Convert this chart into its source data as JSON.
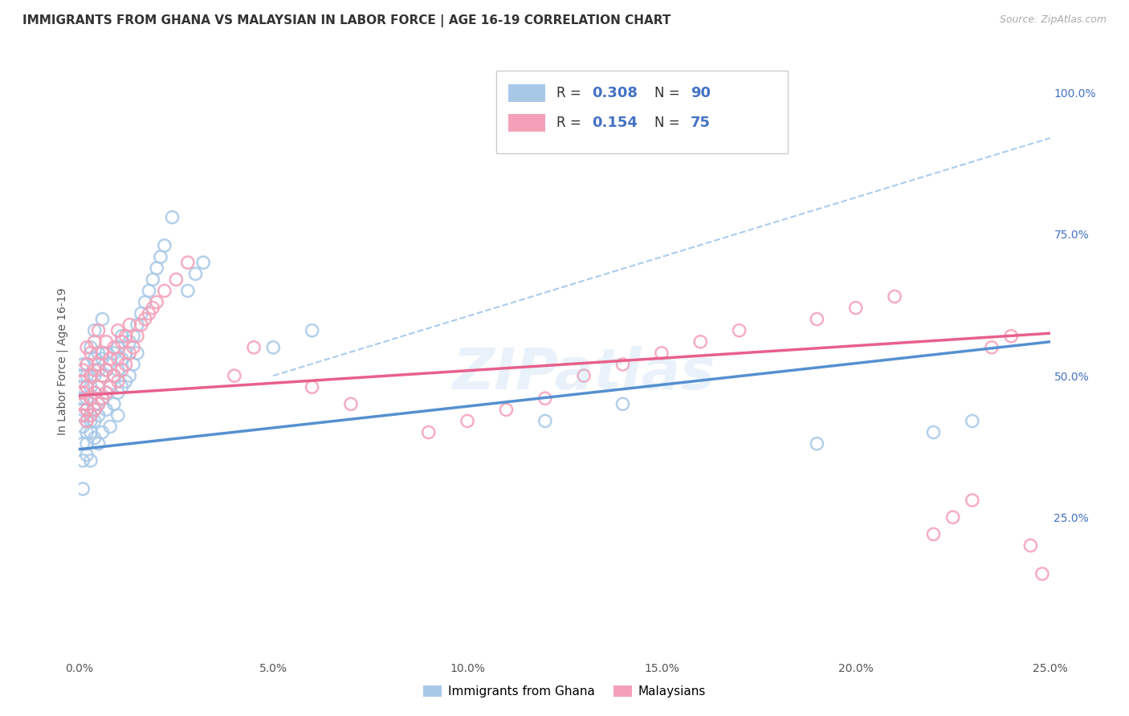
{
  "title": "IMMIGRANTS FROM GHANA VS MALAYSIAN IN LABOR FORCE | AGE 16-19 CORRELATION CHART",
  "source": "Source: ZipAtlas.com",
  "ylabel": "In Labor Force | Age 16-19",
  "xlim": [
    0.0,
    0.25
  ],
  "ylim": [
    0.0,
    1.05
  ],
  "xtick_labels": [
    "0.0%",
    "5.0%",
    "10.0%",
    "15.0%",
    "20.0%",
    "25.0%"
  ],
  "xtick_vals": [
    0.0,
    0.05,
    0.1,
    0.15,
    0.2,
    0.25
  ],
  "ytick_labels_right": [
    "25.0%",
    "50.0%",
    "75.0%",
    "100.0%"
  ],
  "ytick_vals_right": [
    0.25,
    0.5,
    0.75,
    1.0
  ],
  "ghana_color": "#a8c8e8",
  "malaysia_color": "#f4a0b8",
  "ghana_R": 0.308,
  "ghana_N": 90,
  "malaysia_R": 0.154,
  "malaysia_N": 75,
  "ghana_scatter_x": [
    0.001,
    0.001,
    0.001,
    0.001,
    0.001,
    0.001,
    0.001,
    0.001,
    0.001,
    0.001,
    0.002,
    0.002,
    0.002,
    0.002,
    0.002,
    0.002,
    0.002,
    0.002,
    0.002,
    0.003,
    0.003,
    0.003,
    0.003,
    0.003,
    0.003,
    0.003,
    0.003,
    0.004,
    0.004,
    0.004,
    0.004,
    0.004,
    0.004,
    0.004,
    0.005,
    0.005,
    0.005,
    0.005,
    0.005,
    0.005,
    0.006,
    0.006,
    0.006,
    0.006,
    0.006,
    0.007,
    0.007,
    0.007,
    0.007,
    0.008,
    0.008,
    0.008,
    0.009,
    0.009,
    0.009,
    0.01,
    0.01,
    0.01,
    0.01,
    0.011,
    0.011,
    0.011,
    0.012,
    0.012,
    0.013,
    0.013,
    0.014,
    0.014,
    0.015,
    0.015,
    0.016,
    0.017,
    0.018,
    0.019,
    0.02,
    0.021,
    0.022,
    0.024,
    0.028,
    0.03,
    0.032,
    0.05,
    0.06,
    0.12,
    0.14,
    0.19,
    0.22,
    0.23
  ],
  "ghana_scatter_y": [
    0.43,
    0.44,
    0.46,
    0.48,
    0.5,
    0.38,
    0.41,
    0.52,
    0.35,
    0.3,
    0.42,
    0.44,
    0.46,
    0.48,
    0.5,
    0.38,
    0.4,
    0.52,
    0.36,
    0.43,
    0.46,
    0.48,
    0.5,
    0.55,
    0.4,
    0.42,
    0.35,
    0.44,
    0.47,
    0.5,
    0.53,
    0.42,
    0.39,
    0.58,
    0.45,
    0.48,
    0.51,
    0.54,
    0.43,
    0.38,
    0.46,
    0.5,
    0.53,
    0.4,
    0.6,
    0.47,
    0.51,
    0.54,
    0.44,
    0.48,
    0.52,
    0.41,
    0.5,
    0.54,
    0.45,
    0.51,
    0.55,
    0.47,
    0.43,
    0.53,
    0.57,
    0.48,
    0.54,
    0.49,
    0.56,
    0.5,
    0.57,
    0.52,
    0.59,
    0.54,
    0.61,
    0.63,
    0.65,
    0.67,
    0.69,
    0.71,
    0.73,
    0.78,
    0.65,
    0.68,
    0.7,
    0.55,
    0.58,
    0.42,
    0.45,
    0.38,
    0.4,
    0.42
  ],
  "malaysia_scatter_x": [
    0.001,
    0.001,
    0.001,
    0.001,
    0.001,
    0.002,
    0.002,
    0.002,
    0.002,
    0.002,
    0.003,
    0.003,
    0.003,
    0.003,
    0.004,
    0.004,
    0.004,
    0.004,
    0.005,
    0.005,
    0.005,
    0.005,
    0.006,
    0.006,
    0.006,
    0.007,
    0.007,
    0.007,
    0.008,
    0.008,
    0.009,
    0.009,
    0.01,
    0.01,
    0.01,
    0.011,
    0.011,
    0.012,
    0.012,
    0.013,
    0.013,
    0.014,
    0.015,
    0.016,
    0.017,
    0.018,
    0.019,
    0.02,
    0.022,
    0.025,
    0.028,
    0.04,
    0.045,
    0.06,
    0.07,
    0.09,
    0.1,
    0.11,
    0.12,
    0.13,
    0.14,
    0.15,
    0.16,
    0.17,
    0.19,
    0.2,
    0.21,
    0.22,
    0.225,
    0.23,
    0.235,
    0.24,
    0.245,
    0.248
  ],
  "malaysia_scatter_y": [
    0.43,
    0.45,
    0.47,
    0.49,
    0.51,
    0.42,
    0.44,
    0.48,
    0.52,
    0.55,
    0.43,
    0.46,
    0.5,
    0.54,
    0.44,
    0.47,
    0.51,
    0.56,
    0.45,
    0.48,
    0.52,
    0.58,
    0.46,
    0.5,
    0.54,
    0.47,
    0.51,
    0.56,
    0.48,
    0.53,
    0.5,
    0.55,
    0.49,
    0.53,
    0.58,
    0.51,
    0.56,
    0.52,
    0.57,
    0.54,
    0.59,
    0.55,
    0.57,
    0.59,
    0.6,
    0.61,
    0.62,
    0.63,
    0.65,
    0.67,
    0.7,
    0.5,
    0.55,
    0.48,
    0.45,
    0.4,
    0.42,
    0.44,
    0.46,
    0.5,
    0.52,
    0.54,
    0.56,
    0.58,
    0.6,
    0.62,
    0.64,
    0.22,
    0.25,
    0.28,
    0.55,
    0.57,
    0.2,
    0.15
  ],
  "ghana_line_x": [
    0.0,
    0.25
  ],
  "ghana_line_y": [
    0.37,
    0.56
  ],
  "malaysia_line_x": [
    0.0,
    0.25
  ],
  "malaysia_line_y": [
    0.465,
    0.575
  ],
  "dash_line_x": [
    0.05,
    0.25
  ],
  "dash_line_y": [
    0.5,
    0.92
  ],
  "background_color": "#ffffff",
  "grid_color": "#dddddd",
  "ghana_line_color": "#5590d0",
  "malaysia_line_color": "#e8608a",
  "dash_line_color": "#aaccee",
  "legend_label_ghana": "Immigrants from Ghana",
  "legend_label_malaysia": "Malaysians",
  "watermark": "ZIPatlas",
  "r_label_color": "#4472c4",
  "n_label_color": "#4472c4"
}
